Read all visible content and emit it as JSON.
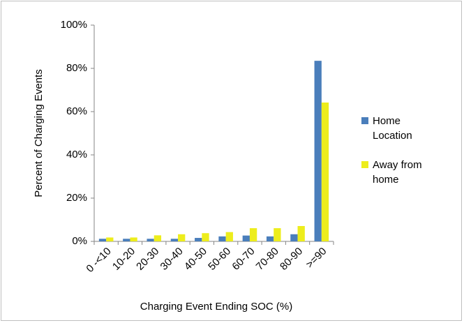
{
  "chart_data": {
    "type": "bar",
    "xlabel": "Charging Event Ending SOC (%)",
    "ylabel": "Percent of Charging Events",
    "categories": [
      "0 -<10",
      "10-20",
      "20-30",
      "30-40",
      "40-50",
      "50-60",
      "60-70",
      "70-80",
      "80-90",
      ">=90"
    ],
    "series": [
      {
        "name": "Home Location",
        "color": "#4a7ebb",
        "values": [
          1.2,
          1.2,
          1.2,
          1.2,
          1.6,
          2.3,
          2.7,
          2.3,
          3.3,
          83.5
        ]
      },
      {
        "name": "Away from home",
        "color": "#eded1c",
        "values": [
          1.8,
          1.8,
          2.8,
          3.3,
          3.8,
          4.3,
          6.1,
          6.1,
          7.1,
          64.2
        ]
      }
    ],
    "ylim": [
      0,
      100
    ],
    "yticks": [
      {
        "value": 0,
        "label": "0%"
      },
      {
        "value": 20,
        "label": "20%"
      },
      {
        "value": 40,
        "label": "40%"
      },
      {
        "value": 60,
        "label": "60%"
      },
      {
        "value": 80,
        "label": "80%"
      },
      {
        "value": 100,
        "label": "100%"
      }
    ],
    "legend": "right",
    "grid": false
  }
}
